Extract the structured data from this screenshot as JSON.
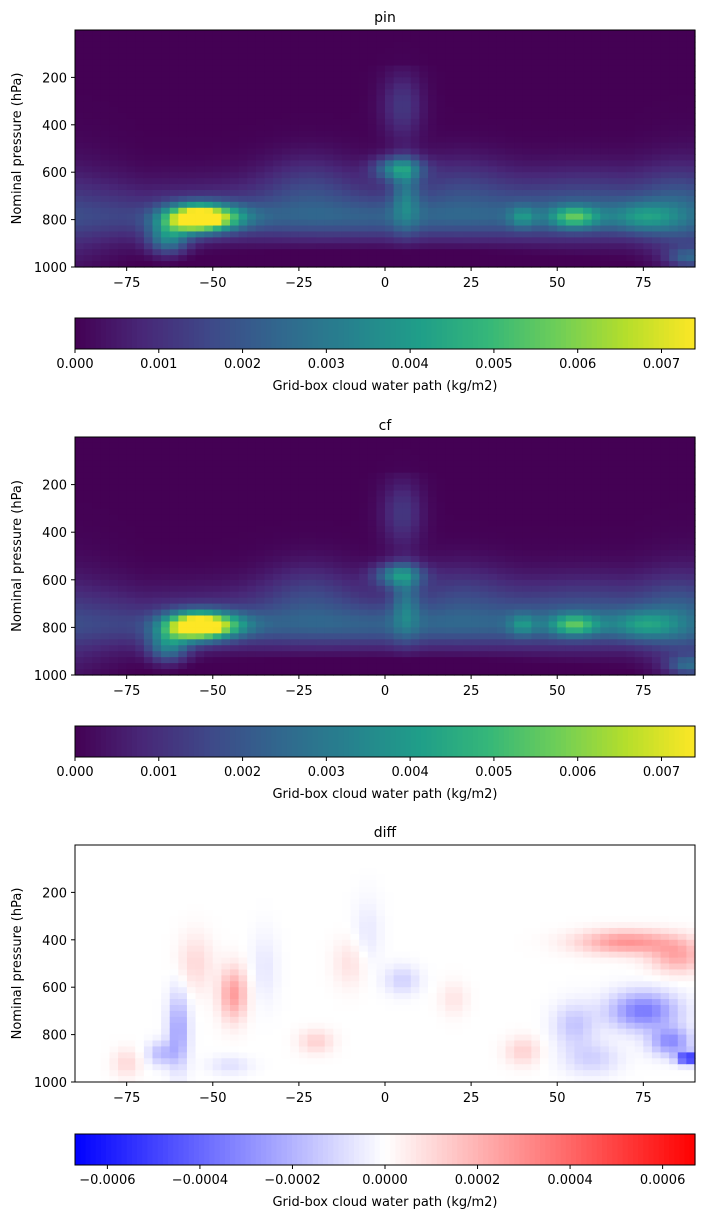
{
  "chart_data": [
    {
      "type": "heatmap",
      "title": "pin",
      "xlabel": "",
      "ylabel": "Nominal pressure (hPa)",
      "xlim": [
        -90,
        90
      ],
      "ylim": [
        1000,
        0
      ],
      "xticks": [
        -75,
        -50,
        -25,
        0,
        25,
        50,
        75
      ],
      "yticks": [
        200,
        400,
        600,
        800,
        1000
      ],
      "colormap": "viridis",
      "colorbar": {
        "label": "Grid-box cloud water path (kg/m2)",
        "range": [
          0,
          0.0074
        ],
        "ticks": [
          0.0,
          0.001,
          0.002,
          0.003,
          0.004,
          0.005,
          0.006,
          0.007
        ],
        "ticklabels": [
          "0.000",
          "0.001",
          "0.002",
          "0.003",
          "0.004",
          "0.005",
          "0.006",
          "0.007"
        ]
      },
      "features": [
        {
          "lat": -55,
          "p": 795,
          "sx": 9,
          "sy": 55,
          "v": 0.0071
        },
        {
          "lat": -48,
          "p": 790,
          "sx": 10,
          "sy": 50,
          "v": 0.0022
        },
        {
          "lat": -63,
          "p": 880,
          "sx": 6,
          "sy": 70,
          "v": 0.0028
        },
        {
          "lat": 4,
          "p": 585,
          "sx": 7,
          "sy": 50,
          "v": 0.0032
        },
        {
          "lat": 6,
          "p": 700,
          "sx": 4,
          "sy": 140,
          "v": 0.0018
        },
        {
          "lat": 5,
          "p": 320,
          "sx": 6,
          "sy": 140,
          "v": 0.0012
        },
        {
          "lat": 40,
          "p": 790,
          "sx": 4,
          "sy": 45,
          "v": 0.0017
        },
        {
          "lat": 55,
          "p": 790,
          "sx": 7,
          "sy": 45,
          "v": 0.0033
        },
        {
          "lat": 75,
          "p": 790,
          "sx": 10,
          "sy": 60,
          "v": 0.002
        },
        {
          "lat": 88,
          "p": 960,
          "sx": 6,
          "sy": 40,
          "v": 0.0018
        },
        {
          "lat": 85,
          "p": 750,
          "sx": 10,
          "sy": 180,
          "v": 0.0008
        },
        {
          "lat": -22,
          "p": 650,
          "sx": 14,
          "sy": 140,
          "v": 0.0009
        },
        {
          "lat": 22,
          "p": 650,
          "sx": 14,
          "sy": 140,
          "v": 0.0008
        },
        {
          "lat": 60,
          "p": 720,
          "sx": 25,
          "sy": 160,
          "v": 0.0009
        },
        {
          "lat": 0,
          "p": 800,
          "sx": 90,
          "sy": 80,
          "v": 0.0012
        }
      ]
    },
    {
      "type": "heatmap",
      "title": "cf",
      "xlabel": "",
      "ylabel": "Nominal pressure (hPa)",
      "xlim": [
        -90,
        90
      ],
      "ylim": [
        1000,
        0
      ],
      "xticks": [
        -75,
        -50,
        -25,
        0,
        25,
        50,
        75
      ],
      "yticks": [
        200,
        400,
        600,
        800,
        1000
      ],
      "colormap": "viridis",
      "colorbar": {
        "label": "Grid-box cloud water path (kg/m2)",
        "range": [
          0,
          0.0074
        ],
        "ticks": [
          0.0,
          0.001,
          0.002,
          0.003,
          0.004,
          0.005,
          0.006,
          0.007
        ],
        "ticklabels": [
          "0.000",
          "0.001",
          "0.002",
          "0.003",
          "0.004",
          "0.005",
          "0.006",
          "0.007"
        ]
      },
      "features": [
        {
          "lat": -55,
          "p": 795,
          "sx": 9,
          "sy": 55,
          "v": 0.007
        },
        {
          "lat": -48,
          "p": 790,
          "sx": 10,
          "sy": 50,
          "v": 0.0022
        },
        {
          "lat": -63,
          "p": 880,
          "sx": 6,
          "sy": 70,
          "v": 0.0027
        },
        {
          "lat": 4,
          "p": 580,
          "sx": 7,
          "sy": 50,
          "v": 0.0031
        },
        {
          "lat": 6,
          "p": 700,
          "sx": 4,
          "sy": 140,
          "v": 0.0017
        },
        {
          "lat": 5,
          "p": 320,
          "sx": 6,
          "sy": 140,
          "v": 0.0012
        },
        {
          "lat": 40,
          "p": 790,
          "sx": 4,
          "sy": 45,
          "v": 0.0017
        },
        {
          "lat": 55,
          "p": 790,
          "sx": 7,
          "sy": 45,
          "v": 0.0032
        },
        {
          "lat": 75,
          "p": 790,
          "sx": 10,
          "sy": 60,
          "v": 0.0021
        },
        {
          "lat": 88,
          "p": 960,
          "sx": 6,
          "sy": 40,
          "v": 0.002
        },
        {
          "lat": 85,
          "p": 750,
          "sx": 10,
          "sy": 180,
          "v": 0.0008
        },
        {
          "lat": -22,
          "p": 650,
          "sx": 14,
          "sy": 140,
          "v": 0.0009
        },
        {
          "lat": 22,
          "p": 650,
          "sx": 14,
          "sy": 140,
          "v": 0.0008
        },
        {
          "lat": 60,
          "p": 720,
          "sx": 25,
          "sy": 160,
          "v": 0.0009
        },
        {
          "lat": 0,
          "p": 800,
          "sx": 90,
          "sy": 80,
          "v": 0.0012
        }
      ]
    },
    {
      "type": "heatmap",
      "title": "diff",
      "xlabel": "",
      "ylabel": "Nominal pressure (hPa)",
      "xlim": [
        -90,
        90
      ],
      "ylim": [
        1000,
        0
      ],
      "xticks": [
        -75,
        -50,
        -25,
        0,
        25,
        50,
        75
      ],
      "yticks": [
        200,
        400,
        600,
        800,
        1000
      ],
      "colormap": "bwr",
      "colorbar": {
        "label": "Grid-box cloud water path (kg/m2)",
        "range": [
          -0.00067,
          0.00067
        ],
        "ticks": [
          -0.0006,
          -0.0004,
          -0.0002,
          0.0,
          0.0002,
          0.0004,
          0.0006
        ],
        "ticklabels": [
          "−0.0006",
          "−0.0004",
          "−0.0002",
          "0.0000",
          "0.0002",
          "0.0004",
          "0.0006"
        ]
      },
      "features": [
        {
          "lat": 70,
          "p": 410,
          "sx": 14,
          "sy": 50,
          "v": 0.00028
        },
        {
          "lat": 85,
          "p": 470,
          "sx": 8,
          "sy": 70,
          "v": 0.00022
        },
        {
          "lat": -44,
          "p": 630,
          "sx": 4,
          "sy": 110,
          "v": 0.00026
        },
        {
          "lat": -55,
          "p": 500,
          "sx": 5,
          "sy": 120,
          "v": 0.0001
        },
        {
          "lat": -20,
          "p": 830,
          "sx": 5,
          "sy": 50,
          "v": 0.00012
        },
        {
          "lat": 40,
          "p": 870,
          "sx": 5,
          "sy": 60,
          "v": 0.00012
        },
        {
          "lat": -10,
          "p": 500,
          "sx": 5,
          "sy": 100,
          "v": 8e-05
        },
        {
          "lat": 20,
          "p": 650,
          "sx": 4,
          "sy": 70,
          "v": 7e-05
        },
        {
          "lat": -75,
          "p": 920,
          "sx": 4,
          "sy": 60,
          "v": 0.0001
        },
        {
          "lat": -60,
          "p": 780,
          "sx": 3,
          "sy": 160,
          "v": -0.00025
        },
        {
          "lat": -65,
          "p": 880,
          "sx": 4,
          "sy": 50,
          "v": -0.00018
        },
        {
          "lat": 75,
          "p": 700,
          "sx": 10,
          "sy": 80,
          "v": -0.00035
        },
        {
          "lat": 83,
          "p": 830,
          "sx": 6,
          "sy": 60,
          "v": -0.0003
        },
        {
          "lat": 88,
          "p": 900,
          "sx": 3,
          "sy": 25,
          "v": -0.0006
        },
        {
          "lat": 55,
          "p": 760,
          "sx": 6,
          "sy": 90,
          "v": -0.00015
        },
        {
          "lat": 5,
          "p": 570,
          "sx": 5,
          "sy": 60,
          "v": -0.00012
        },
        {
          "lat": -5,
          "p": 380,
          "sx": 4,
          "sy": 150,
          "v": -6e-05
        },
        {
          "lat": -35,
          "p": 520,
          "sx": 4,
          "sy": 150,
          "v": -6e-05
        },
        {
          "lat": 60,
          "p": 900,
          "sx": 8,
          "sy": 70,
          "v": -0.00012
        },
        {
          "lat": -45,
          "p": 930,
          "sx": 6,
          "sy": 40,
          "v": -8e-05
        }
      ]
    }
  ]
}
